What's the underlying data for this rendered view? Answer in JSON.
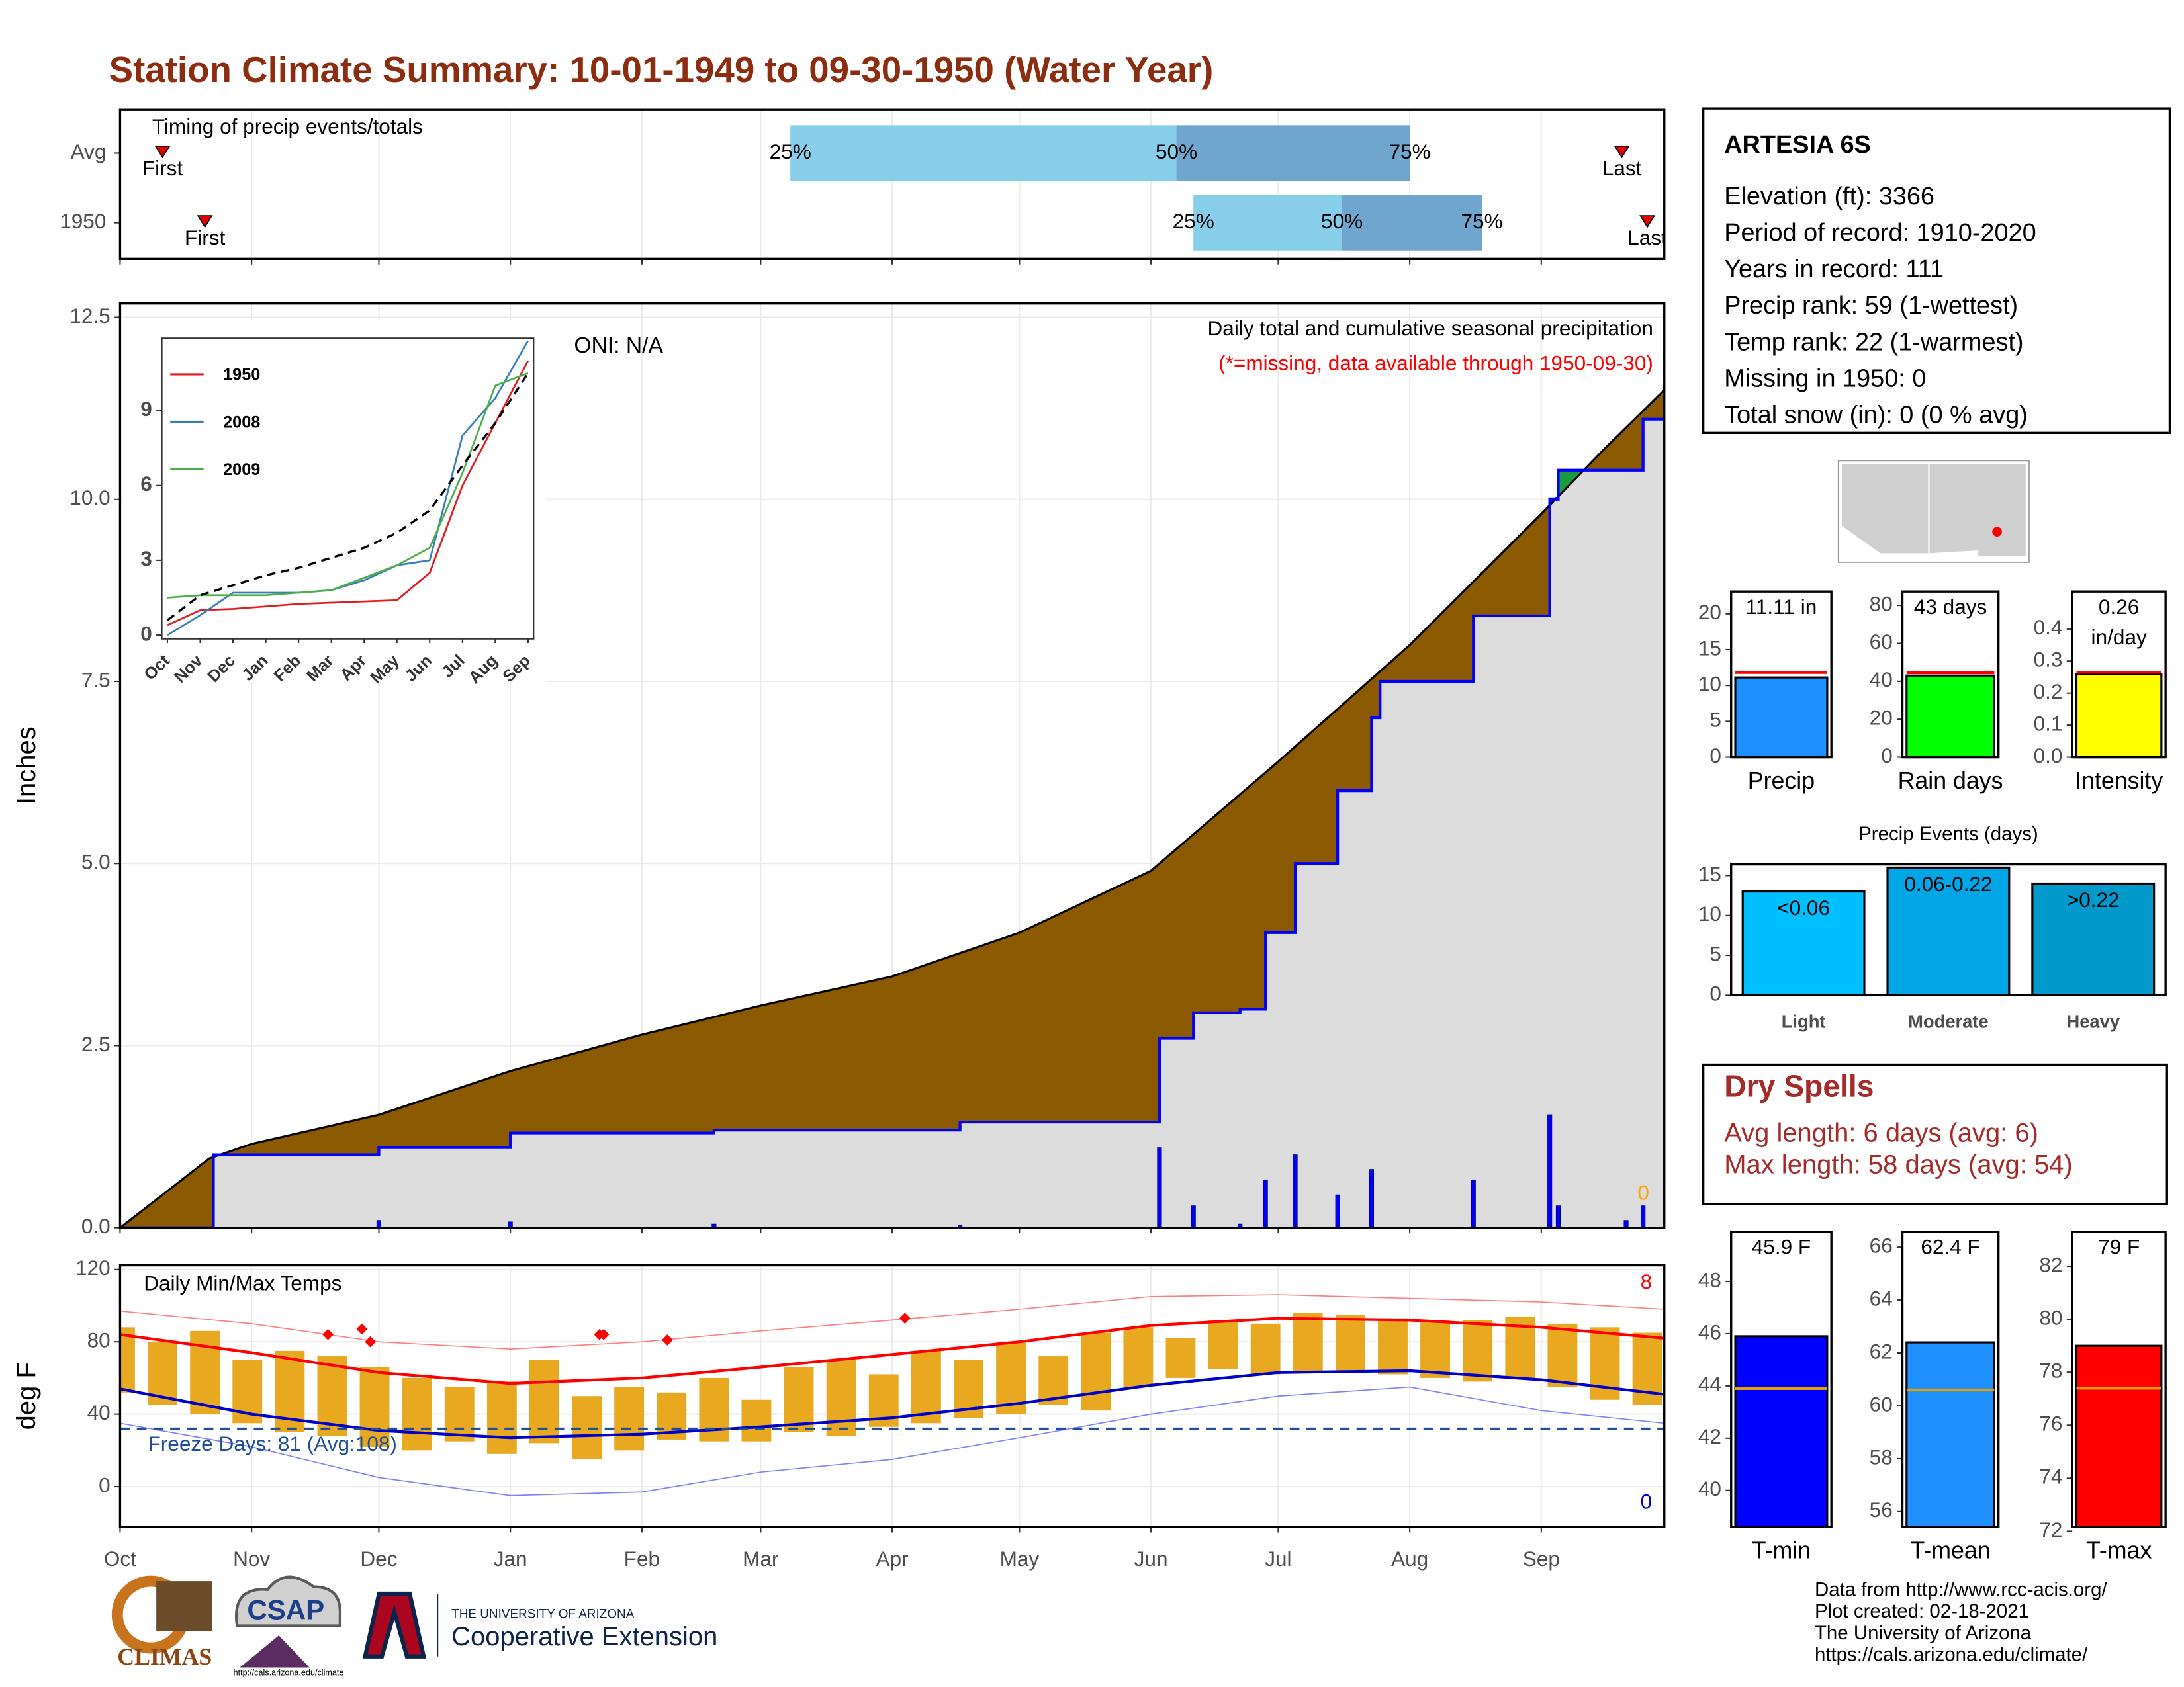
{
  "title": "Station Climate Summary: 10-01-1949 to 09-30-1950 (Water Year)",
  "chart_data": [
    {
      "type": "timing",
      "title": "Timing of precip events/totals",
      "xlim": [
        0,
        364
      ],
      "xticks": [
        0,
        31,
        61,
        92,
        123,
        151,
        182,
        212,
        243,
        273,
        304,
        335
      ],
      "grid": true,
      "rows": [
        {
          "label": "Avg",
          "first": 10,
          "last": 354,
          "first_label": "First",
          "last_label": "Last",
          "quartiles": [
            {
              "value": 158,
              "label": "25%"
            },
            {
              "value": 249,
              "label": "50%"
            },
            {
              "value": 304,
              "label": "75%"
            }
          ]
        },
        {
          "label": "1950",
          "first": 20,
          "last": 360,
          "first_label": "First",
          "last_label": "Last",
          "quartiles": [
            {
              "value": 253,
              "label": "25%"
            },
            {
              "value": 288,
              "label": "50%"
            },
            {
              "value": 321,
              "label": "75%"
            }
          ]
        }
      ],
      "colors": [
        "#87ceeb",
        "#6fa6cf"
      ]
    },
    {
      "type": "area",
      "y_label": "Inches",
      "xlim": [
        0,
        364
      ],
      "ylim": [
        0,
        12.69
      ],
      "xticks": [
        0,
        31,
        61,
        92,
        123,
        151,
        182,
        212,
        243,
        273,
        304,
        335
      ],
      "yticks": [
        {
          "value": 0,
          "label": "0.0"
        },
        2.5,
        {
          "value": 5,
          "label": "5.0"
        },
        7.5,
        {
          "value": 10,
          "label": "10.0"
        },
        12.5
      ],
      "grid": true,
      "annotations": [
        "ONI: N/A",
        "Daily total and cumulative seasonal precipitation",
        "(*=missing, data available through 1950-09-30)",
        "0"
      ],
      "series": [
        {
          "style": "area",
          "color": "#8b5a00",
          "x": [
            0,
            10,
            21,
            31,
            61,
            92,
            123,
            151,
            182,
            212,
            243,
            273,
            304,
            335,
            350,
            364
          ],
          "values": [
            0,
            0.45,
            0.95,
            1.15,
            1.55,
            2.15,
            2.65,
            3.05,
            3.45,
            4.05,
            4.9,
            6.4,
            8.0,
            9.8,
            10.7,
            11.5
          ]
        },
        {
          "style": "step",
          "color": "#0000ff",
          "x": [
            0,
            22,
            61,
            92,
            140,
            198,
            245,
            253,
            264,
            270,
            277,
            287,
            295,
            297,
            319,
            337,
            339,
            359
          ],
          "values": [
            0,
            1.0,
            1.1,
            1.3,
            1.34,
            1.45,
            2.6,
            2.95,
            3.0,
            4.05,
            5.0,
            6.0,
            7.0,
            7.5,
            8.4,
            10.0,
            10.4,
            11.1
          ]
        },
        {
          "style": "bars",
          "color": "#0000ff",
          "x": [
            61,
            92,
            140,
            198,
            245,
            253,
            264,
            270,
            277,
            287,
            295,
            319,
            337,
            339,
            355,
            359
          ],
          "values": [
            0.1,
            0.08,
            0.05,
            0.03,
            1.1,
            0.3,
            0.05,
            0.65,
            1.0,
            0.45,
            0.8,
            0.65,
            1.55,
            0.3,
            0.1,
            0.3
          ]
        }
      ]
    },
    {
      "type": "line",
      "categories": [
        "Oct",
        "Nov",
        "Dec",
        "Jan",
        "Feb",
        "Mar",
        "Apr",
        "May",
        "Jun",
        "Jul",
        "Aug",
        "Sep"
      ],
      "ylim": [
        -0.15,
        11.9
      ],
      "yticks": [
        0,
        3,
        6,
        9
      ],
      "series": [
        {
          "name": "1950",
          "color": "#e41a1c",
          "values": [
            0.4,
            1.0,
            1.05,
            1.15,
            1.25,
            1.3,
            1.35,
            1.4,
            2.5,
            6.0,
            8.5,
            11.0
          ]
        },
        {
          "name": "2008",
          "color": "#377eb8",
          "values": [
            0.0,
            0.8,
            1.7,
            1.7,
            1.7,
            1.8,
            2.2,
            2.8,
            3.0,
            8.0,
            9.5,
            11.8
          ]
        },
        {
          "name": "2009",
          "color": "#4daf4a",
          "values": [
            1.5,
            1.6,
            1.6,
            1.6,
            1.7,
            1.8,
            2.3,
            2.8,
            3.5,
            6.5,
            10.0,
            10.5
          ]
        },
        {
          "color": "#000000",
          "dash": true,
          "values": [
            0.6,
            1.6,
            2.0,
            2.4,
            2.7,
            3.1,
            3.5,
            4.1,
            5.0,
            6.8,
            8.5,
            10.5
          ]
        }
      ]
    },
    {
      "type": "temperature",
      "title": "Daily Min/Max Temps",
      "y_label": "deg F",
      "xlim": [
        0,
        364
      ],
      "ylim": [
        -22.3,
        122.3
      ],
      "xticks": [
        {
          "value": 0,
          "label": "Oct"
        },
        {
          "value": 31,
          "label": "Nov"
        },
        {
          "value": 61,
          "label": "Dec"
        },
        {
          "value": 92,
          "label": "Jan"
        },
        {
          "value": 123,
          "label": "Feb"
        },
        {
          "value": 151,
          "label": "Mar"
        },
        {
          "value": 182,
          "label": "Apr"
        },
        {
          "value": 212,
          "label": "May"
        },
        {
          "value": 243,
          "label": "Jun"
        },
        {
          "value": 273,
          "label": "Jul"
        },
        {
          "value": 304,
          "label": "Aug"
        },
        {
          "value": 335,
          "label": "Sep"
        }
      ],
      "yticks": [
        0,
        40,
        80,
        120
      ],
      "grid": true,
      "freeze_line": {
        "value": 32,
        "label": "Freeze Days: 81 (Avg:108)"
      },
      "annotations": [
        {
          "text": "8",
          "color": "#ff0000"
        },
        {
          "text": "0",
          "color": "#0000cd"
        }
      ],
      "series": [
        {
          "style": "range",
          "color": "#e8a820",
          "x": [
            0,
            10,
            20,
            30,
            40,
            50,
            60,
            70,
            80,
            90,
            100,
            110,
            120,
            130,
            140,
            150,
            160,
            170,
            180,
            190,
            200,
            210,
            220,
            230,
            240,
            250,
            260,
            270,
            280,
            290,
            300,
            310,
            320,
            330,
            340,
            350,
            360
          ],
          "values": [
            88,
            80,
            86,
            70,
            75,
            72,
            66,
            60,
            55,
            58,
            70,
            50,
            55,
            52,
            60,
            48,
            66,
            70,
            62,
            75,
            70,
            80,
            72,
            85,
            88,
            82,
            92,
            90,
            96,
            95,
            93,
            92,
            92,
            94,
            90,
            88,
            85
          ],
          "lows": [
            52,
            45,
            40,
            35,
            30,
            28,
            22,
            20,
            25,
            18,
            24,
            15,
            20,
            26,
            25,
            25,
            30,
            28,
            33,
            35,
            38,
            40,
            45,
            42,
            55,
            60,
            65,
            62,
            64,
            63,
            62,
            60,
            58,
            60,
            55,
            48,
            45
          ]
        },
        {
          "style": "line",
          "width": 0.8,
          "color": "#ff8080",
          "x": [
            0,
            31,
            61,
            92,
            123,
            151,
            182,
            212,
            243,
            273,
            304,
            335,
            364
          ],
          "values": [
            97,
            90,
            80,
            76,
            80,
            86,
            92,
            98,
            105,
            106,
            104,
            102,
            98
          ]
        },
        {
          "style": "line",
          "width": 0.8,
          "color": "#8080ff",
          "x": [
            0,
            31,
            61,
            92,
            123,
            151,
            182,
            212,
            243,
            273,
            304,
            335,
            364
          ],
          "values": [
            35,
            22,
            5,
            -5,
            -3,
            8,
            15,
            27,
            40,
            50,
            55,
            42,
            35
          ]
        },
        {
          "style": "line",
          "width": 2,
          "color": "#ff0000",
          "x": [
            0,
            31,
            61,
            92,
            123,
            151,
            182,
            212,
            243,
            273,
            304,
            335,
            364
          ],
          "values": [
            84,
            74,
            63,
            57,
            60,
            66,
            73,
            80,
            89,
            93,
            92,
            88,
            82
          ]
        },
        {
          "style": "line",
          "width": 2,
          "color": "#0000cd",
          "x": [
            0,
            31,
            61,
            92,
            123,
            151,
            182,
            212,
            243,
            273,
            304,
            335,
            364
          ],
          "values": [
            54,
            40,
            31,
            27,
            29,
            33,
            38,
            46,
            56,
            63,
            64,
            59,
            51
          ]
        },
        {
          "style": "points",
          "color": "#ff0000",
          "x": [
            49,
            57,
            59,
            113,
            114,
            129,
            185
          ],
          "values": [
            84,
            87,
            80,
            84,
            84,
            81,
            93
          ]
        }
      ]
    },
    {
      "type": "bar",
      "categories": [
        "Precip"
      ],
      "values": [
        11.11
      ],
      "value_labels": [
        "11.11 in"
      ],
      "average": 11.8,
      "color": "#1e90ff",
      "average_color": "#ff0000",
      "ylim": [
        0,
        23.1
      ],
      "yticks": [
        0,
        5,
        10,
        15,
        20
      ]
    },
    {
      "type": "bar",
      "categories": [
        "Rain days"
      ],
      "values": [
        43
      ],
      "value_labels": [
        "43 days"
      ],
      "average": 44.5,
      "color": "#00ff00",
      "average_color": "#ff0000",
      "ylim": [
        0,
        87.3
      ],
      "yticks": [
        0,
        20,
        40,
        60,
        80
      ]
    },
    {
      "type": "bar",
      "categories": [
        "Intensity"
      ],
      "values": [
        0.26
      ],
      "value_labels": [
        "0.26 in/day"
      ],
      "average": 0.265,
      "color": "#ffff00",
      "average_color": "#ff0000",
      "ylim": [
        0,
        0.517
      ],
      "yticks": [
        {
          "value": 0,
          "label": "0.0"
        },
        0.1,
        0.2,
        0.3,
        0.4
      ]
    },
    {
      "type": "bar",
      "title": "Precip Events (days)",
      "categories": [
        "Light",
        "Moderate",
        "Heavy"
      ],
      "values": [
        13,
        16,
        14
      ],
      "bar_labels": [
        "<0.06",
        "0.06-0.22",
        ">0.22"
      ],
      "colors": [
        "#00bfff",
        "#00a6e6",
        "#0099cc"
      ],
      "ylim": [
        0,
        16.4
      ],
      "yticks": [
        0,
        5,
        10,
        15
      ]
    },
    {
      "type": "bar",
      "categories": [
        "T-min"
      ],
      "values": [
        45.9
      ],
      "value_labels": [
        "45.9 F"
      ],
      "average": 43.9,
      "color": "#0000ff",
      "average_color": "#e69f00",
      "ylim": [
        38.6,
        49.9
      ],
      "yticks": [
        40,
        42,
        44,
        46,
        48
      ]
    },
    {
      "type": "bar",
      "categories": [
        "T-mean"
      ],
      "values": [
        62.4
      ],
      "value_labels": [
        "62.4 F"
      ],
      "average": 60.6,
      "color": "#1e90ff",
      "average_color": "#e69f00",
      "ylim": [
        55.42,
        66.58
      ],
      "yticks": [
        56,
        58,
        60,
        62,
        64,
        66
      ]
    },
    {
      "type": "bar",
      "categories": [
        "T-max"
      ],
      "values": [
        79
      ],
      "value_labels": [
        "79 F"
      ],
      "average": 77.4,
      "color": "#ff0000",
      "average_color": "#e69f00",
      "ylim": [
        72.16,
        83.3
      ],
      "yticks": [
        72,
        74,
        76,
        78,
        80,
        82
      ]
    }
  ],
  "station": {
    "name": "ARTESIA 6S",
    "lines": [
      "Elevation (ft): 3366",
      "Period of record: 1910-2020",
      "Years in record: 111",
      "Precip rank: 59 (1-wettest)",
      "Temp rank: 22 (1-warmest)",
      "Missing in 1950: 0",
      "Total snow (in): 0 (0 % avg)"
    ]
  },
  "dry_spells": {
    "title": "Dry Spells",
    "lines": [
      "Avg length: 6 days (avg: 6)",
      "Max length: 58 days (avg: 54)"
    ]
  },
  "footer": [
    "Data from http://www.rcc-acis.org/",
    "Plot created: 02-18-2021",
    "The University of Arizona",
    "https://cals.arizona.edu/climate/"
  ],
  "logos": {
    "climas": "CLIMAS",
    "csap": "CSAP",
    "csap_url": "http://cals.arizona.edu/climate",
    "ua": "THE UNIVERSITY OF ARIZONA",
    "extension": "Cooperative Extension"
  }
}
